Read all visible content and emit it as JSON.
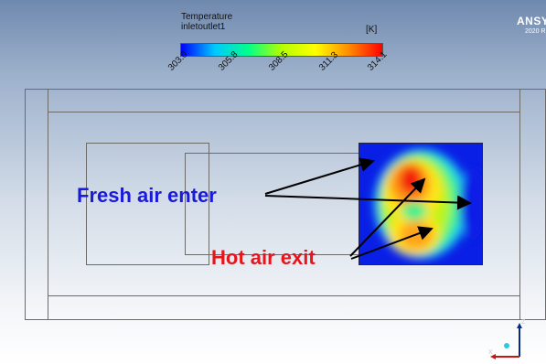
{
  "legend": {
    "title_line1": "Temperature",
    "title_line2": "inletoutlet1",
    "unit": "[K]",
    "ticks": [
      "303.0",
      "305.8",
      "308.5",
      "311.3",
      "314.1"
    ],
    "colors": [
      "#0000ff",
      "#00c8ff",
      "#00ff8c",
      "#b4ff00",
      "#ffff00",
      "#ff8c00",
      "#ff0000"
    ]
  },
  "brand": {
    "name": "ANSYS",
    "version": "2020 R"
  },
  "annotations": {
    "fresh_air": "Fresh air enter",
    "hot_air": "Hot air exit",
    "fresh_color": "#1a1adb",
    "hot_color": "#e8141b"
  },
  "axes": {
    "z": "Z",
    "x": "X"
  }
}
